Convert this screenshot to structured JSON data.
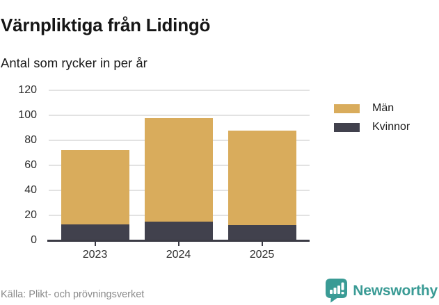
{
  "title": "Värnpliktiga från Lidingö",
  "subtitle": "Antal som rycker in per år",
  "source": "Källa: Plikt- och prövningsverket",
  "brand": {
    "name": "Newsworthy",
    "logo_icon": "bar-chart-speech-bubble-icon"
  },
  "colors": {
    "man_bar": "#d9ac5c",
    "kvinnor_bar": "#41414d",
    "gridline": "#e2e2e2",
    "axis": "#3b3b45",
    "tick_label": "#2e2e2e",
    "source_text": "#8a8a8a",
    "brand_teal": "#3a9b95",
    "background": "#ffffff"
  },
  "chart_data": {
    "type": "bar",
    "stacked": true,
    "title": "Värnpliktiga från Lidingö",
    "subtitle": "Antal som rycker in per år",
    "source": "Källa: Plikt- och prövningsverket",
    "categories": [
      "2023",
      "2024",
      "2025"
    ],
    "series": [
      {
        "name": "Män",
        "color": "#d9ac5c",
        "values": [
          59,
          83,
          76
        ]
      },
      {
        "name": "Kvinnor",
        "color": "#41414d",
        "values": [
          13,
          15,
          12
        ]
      }
    ],
    "totals": [
      72,
      98,
      88
    ],
    "xlabel": "",
    "ylabel": "",
    "ylim": [
      0,
      120
    ],
    "ytick_interval": 20,
    "yticks": [
      0,
      20,
      40,
      60,
      80,
      100,
      120
    ],
    "grid": "horizontal",
    "legend_position": "right"
  }
}
